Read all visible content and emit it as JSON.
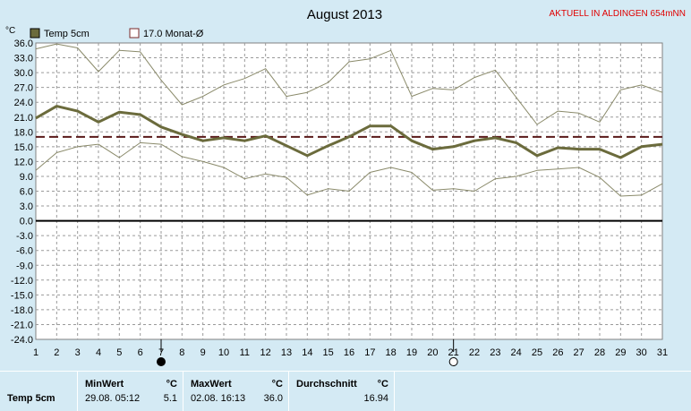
{
  "chart_data": {
    "type": "line",
    "title": "August 2013",
    "station": "AKTUELL IN ALDINGEN 654mNN",
    "ylabel": "°C",
    "ylim": [
      -24,
      36
    ],
    "yticks": [
      "36.0",
      "33.0",
      "30.0",
      "27.0",
      "24.0",
      "21.0",
      "18.0",
      "15.0",
      "12.0",
      "9.0",
      "6.0",
      "3.0",
      "0.0",
      "-3.0",
      "-6.0",
      "-9.0",
      "-12.0",
      "-15.0",
      "-18.0",
      "-21.0",
      "-24.0"
    ],
    "x": [
      1,
      2,
      3,
      4,
      5,
      6,
      7,
      8,
      9,
      10,
      11,
      12,
      13,
      14,
      15,
      16,
      17,
      18,
      19,
      20,
      21,
      22,
      23,
      24,
      25,
      26,
      27,
      28,
      29,
      30,
      31
    ],
    "grid": true,
    "legend_position": "top-left",
    "legend": [
      {
        "label": "Temp 5cm",
        "color": "#6b6b3c"
      },
      {
        "label": "17.0 Monat-Ø",
        "color": "#7a2a2a"
      }
    ],
    "reference_line": {
      "value": 17.0,
      "color": "#5a1a1a"
    },
    "moon_markers": [
      {
        "day": 7,
        "phase": "new-moon"
      },
      {
        "day": 21,
        "phase": "full-moon"
      }
    ],
    "series": [
      {
        "name": "Temp 5cm",
        "kind": "mean",
        "color": "#6b6b3c",
        "values": [
          20.8,
          23.2,
          22.2,
          20.0,
          22.0,
          21.5,
          19.0,
          17.5,
          16.2,
          16.8,
          16.2,
          17.2,
          15.2,
          13.2,
          15.2,
          17.0,
          19.2,
          19.2,
          16.2,
          14.5,
          15.0,
          16.2,
          16.8,
          15.8,
          13.2,
          14.8,
          14.5,
          14.5,
          12.8,
          15.0,
          15.5
        ]
      },
      {
        "kind": "max",
        "color": "#8a8a6a",
        "values": [
          34.8,
          35.8,
          35.0,
          30.2,
          34.5,
          34.2,
          28.5,
          23.5,
          25.2,
          27.5,
          28.8,
          30.8,
          25.2,
          26.0,
          28.0,
          32.2,
          32.8,
          34.5,
          25.2,
          26.8,
          26.5,
          29.0,
          30.5,
          25.0,
          19.5,
          22.2,
          21.8,
          20.0,
          26.5,
          27.5,
          26.0
        ]
      },
      {
        "kind": "min",
        "color": "#8a8a6a",
        "values": [
          10.2,
          13.8,
          15.0,
          15.5,
          12.8,
          15.8,
          15.5,
          13.0,
          12.0,
          10.8,
          8.5,
          9.5,
          8.8,
          5.2,
          6.5,
          6.0,
          9.8,
          10.8,
          9.8,
          6.2,
          6.5,
          6.0,
          8.5,
          9.0,
          10.2,
          10.5,
          10.8,
          8.8,
          5.0,
          5.2,
          7.5
        ]
      }
    ]
  },
  "stats": {
    "series_label": "Temp 5cm",
    "min": {
      "header": "MinWert",
      "unit": "°C",
      "when": "29.08.  05:12",
      "value": "5.1"
    },
    "max": {
      "header": "MaxWert",
      "unit": "°C",
      "when": "02.08.  16:13",
      "value": "36.0"
    },
    "avg": {
      "header": "Durchschnitt",
      "unit": "°C",
      "value": "16.94"
    }
  }
}
